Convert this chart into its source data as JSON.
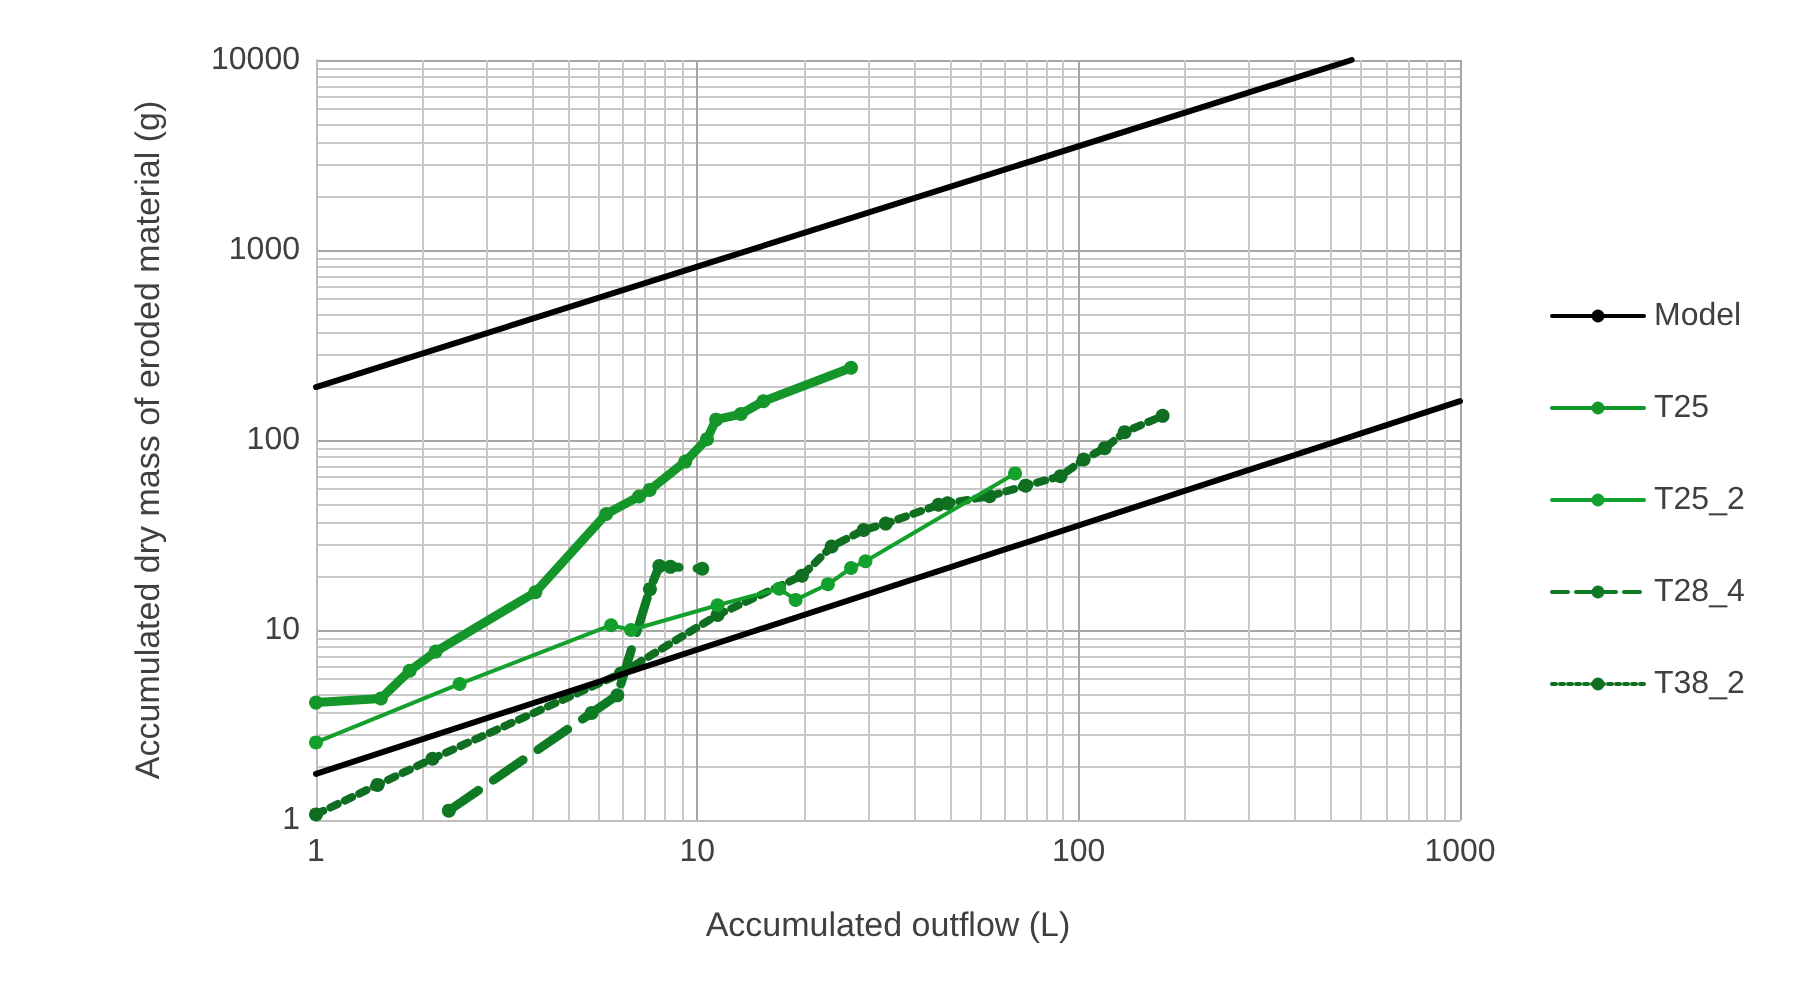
{
  "chart_data": {
    "type": "line",
    "xlabel": "Accumulated outflow (L)",
    "ylabel": "Accumulated dry mass of eroded material (g)",
    "log": "xy",
    "xlim": [
      1,
      1000
    ],
    "xticks": [
      1,
      10,
      100,
      1000
    ],
    "ylim": [
      1,
      10000
    ],
    "yticks": [
      1,
      10,
      100,
      1000,
      10000
    ],
    "grid": true,
    "legend": "right",
    "marker": "circle",
    "series": [
      {
        "name": "Model",
        "color": "#000000",
        "marker": "none",
        "line_style": "solid",
        "x": [
          1,
          520
        ],
        "values": [
          190,
          10000
        ]
      },
      {
        "color": "#000000",
        "marker": "none",
        "line_style": "solid",
        "x": [
          1,
          1000
        ],
        "values": [
          1.75,
          160
        ]
      },
      {
        "name": "T25",
        "color": "#14962a",
        "line_style": "solid",
        "x": [
          1,
          1.48,
          1.76,
          2.06,
          3.76,
          5.77,
          7.03,
          7.5,
          9.3,
          10.6,
          11.2,
          13,
          14.9,
          25.3
        ],
        "values": [
          4.15,
          4.36,
          6.1,
          7.7,
          15.8,
          40.8,
          50.4,
          54.6,
          77,
          101,
          128,
          137,
          160,
          240
        ]
      },
      {
        "name": "T25_2",
        "color": "#14a02c",
        "line_style": "solid",
        "x": [
          1,
          2.38,
          5.94,
          6.7,
          11.3,
          16.4,
          18.1,
          22,
          25.3,
          27.6,
          68.1
        ],
        "values": [
          2.56,
          5.2,
          10.6,
          10,
          13.5,
          16.5,
          14.4,
          17.4,
          21.2,
          23,
          66.7
        ]
      },
      {
        "name": "T28_4",
        "color": "#0f7a24",
        "line_style": "dashed",
        "x": [
          2.23,
          5.28,
          6.17,
          7.51,
          7.95,
          8.5,
          10.3
        ],
        "values": [
          1.12,
          3.66,
          4.53,
          16.4,
          21.7,
          21.5,
          21
        ]
      },
      {
        "name": "T38_2",
        "color": "#0f6e20",
        "line_style": "dotted",
        "x": [
          1,
          1.45,
          2.02,
          6.3,
          11.3,
          18.8,
          22.5,
          27.3,
          31.2,
          42.9,
          45.3,
          58.4,
          72.6,
          89.6,
          103,
          117,
          132,
          166
        ],
        "values": [
          1.07,
          1.53,
          2.1,
          5.9,
          12,
          19.3,
          27.5,
          33.6,
          36.3,
          45.6,
          46.4,
          50.6,
          57.5,
          64.4,
          79,
          90.6,
          110,
          134
        ]
      }
    ]
  }
}
